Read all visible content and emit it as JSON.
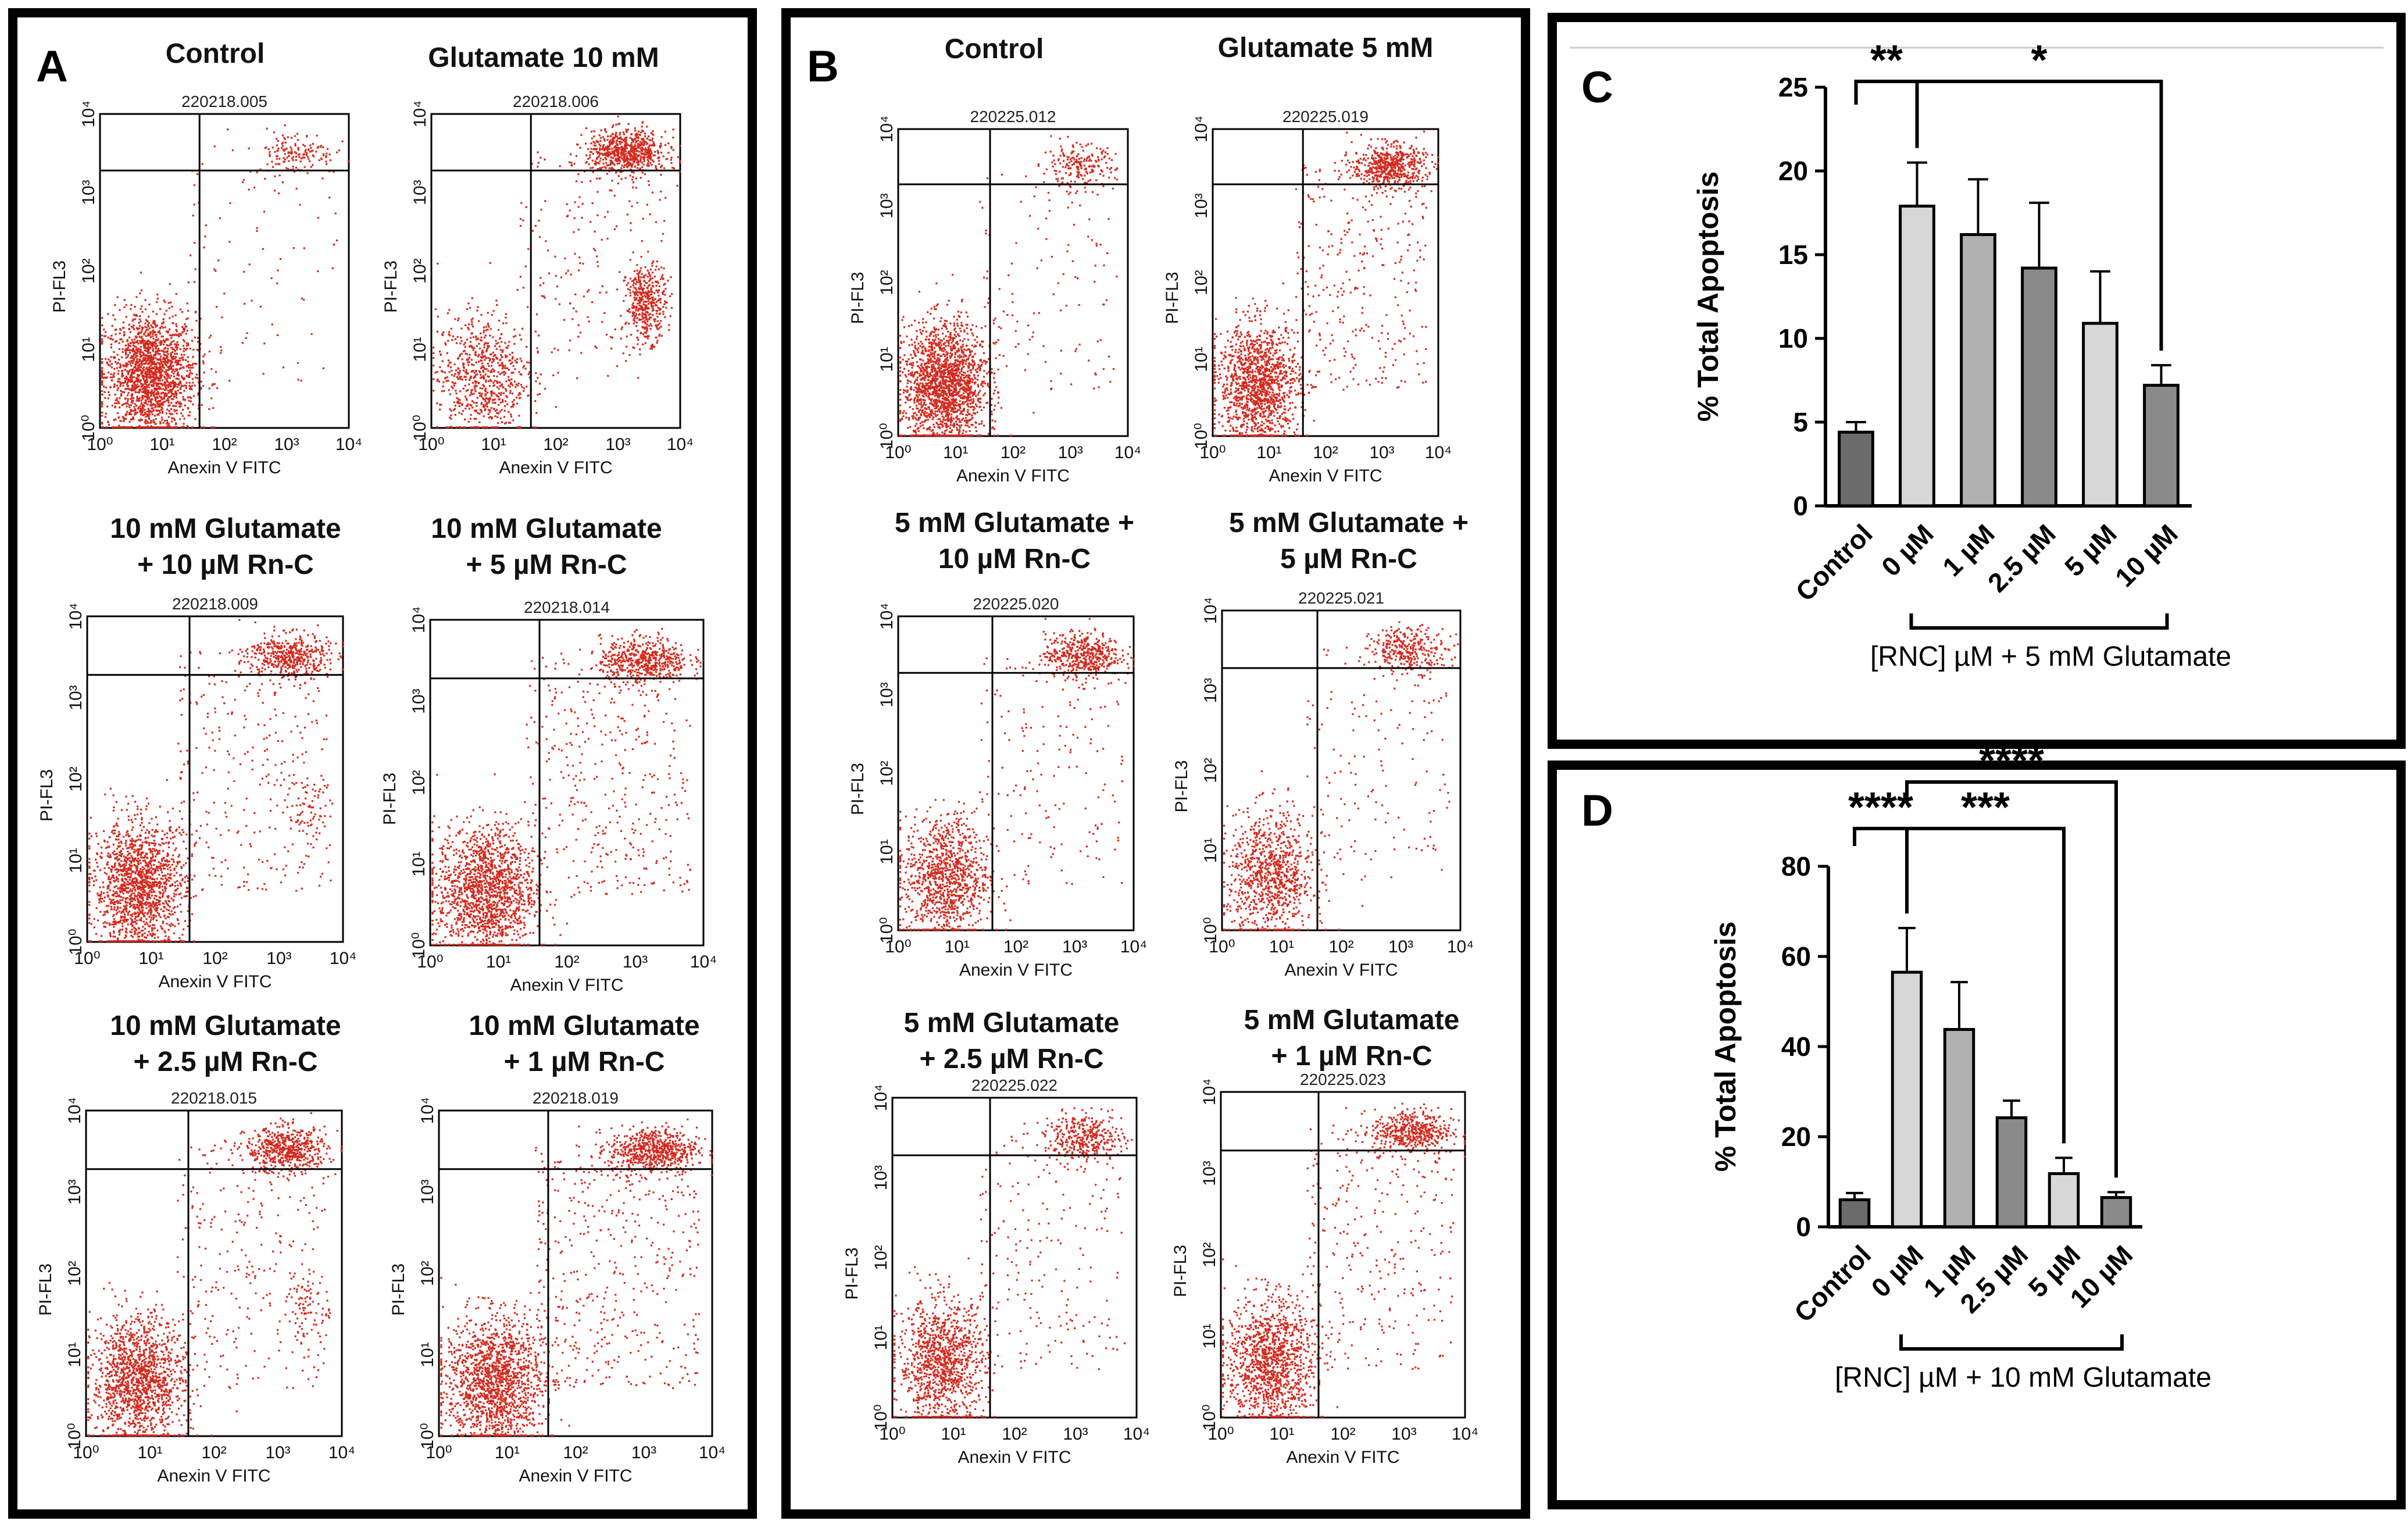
{
  "figure": {
    "panel_labels": {
      "a": "A",
      "b": "B",
      "c": "C",
      "d": "D"
    },
    "dot_color": "#d42a1e",
    "bar_colors": {
      "dark": "#6b6b6b",
      "light": "#d7d7d7",
      "mid": "#8a8a8a",
      "midlight": "#b0b0b0"
    }
  },
  "flow_axes": {
    "xlabel": "Anexin V FITC",
    "ylabel": "PI-FL3",
    "tick_labels": [
      "10⁰",
      "10¹",
      "10²",
      "10³",
      "10⁴"
    ]
  },
  "panelA": {
    "plots": [
      {
        "title": [
          "Control"
        ],
        "sample_id": "220218.005"
      },
      {
        "title": [
          "Glutamate 10 mM"
        ],
        "sample_id": "220218.006"
      },
      {
        "title": [
          "10 mM Glutamate",
          "+ 10 µM Rn-C"
        ],
        "sample_id": "220218.009"
      },
      {
        "title": [
          "10 mM Glutamate",
          "+ 5 µM Rn-C"
        ],
        "sample_id": "220218.014"
      },
      {
        "title": [
          "10 mM Glutamate",
          "+ 2.5 µM Rn-C"
        ],
        "sample_id": "220218.015"
      },
      {
        "title": [
          "10 mM Glutamate",
          "+ 1 µM Rn-C"
        ],
        "sample_id": "220218.019"
      }
    ]
  },
  "panelB": {
    "plots": [
      {
        "title": [
          "Control"
        ],
        "sample_id": "220225.012"
      },
      {
        "title": [
          "Glutamate 5 mM"
        ],
        "sample_id": "220225.019"
      },
      {
        "title": [
          "5 mM Glutamate +",
          "10 µM Rn-C"
        ],
        "sample_id": "220225.020"
      },
      {
        "title": [
          "5 mM Glutamate +",
          "5 µM Rn-C"
        ],
        "sample_id": "220225.021"
      },
      {
        "title": [
          "5 mM Glutamate",
          "+ 2.5 µM Rn-C"
        ],
        "sample_id": "220225.022"
      },
      {
        "title": [
          "5 mM Glutamate",
          "+ 1 µM Rn-C"
        ],
        "sample_id": "220225.023"
      }
    ]
  },
  "chart_data": [
    {
      "id": "C",
      "type": "bar",
      "categories": [
        "Control",
        "0 µM",
        "1 µM",
        "2.5 µM",
        "5 µM",
        "10 µM"
      ],
      "values": [
        4.4,
        17.9,
        16.2,
        14.2,
        10.9,
        7.2
      ],
      "errors": [
        0.6,
        2.6,
        3.3,
        3.9,
        3.1,
        1.2
      ],
      "ylabel": "% Total Apoptosis",
      "xlabel": "[RNC] µM + 5 mM Glutamate",
      "ylim": [
        0,
        25
      ],
      "yticks": [
        0,
        5,
        10,
        15,
        20,
        25
      ],
      "significance": [
        {
          "from": 0,
          "to": 1,
          "label": "**"
        },
        {
          "from": 1,
          "to": 5,
          "label": "*"
        }
      ]
    },
    {
      "id": "D",
      "type": "bar",
      "categories": [
        "Control",
        "0 µM",
        "1 µM",
        "2.5 µM",
        "5 µM",
        "10 µM"
      ],
      "values": [
        6.0,
        56.5,
        43.8,
        24.2,
        11.8,
        6.5
      ],
      "errors": [
        1.5,
        9.8,
        10.5,
        3.8,
        3.5,
        1.2
      ],
      "ylabel": "% Total Apoptosis",
      "xlabel": "[RNC] µM + 10 mM Glutamate",
      "ylim": [
        0,
        80
      ],
      "yticks": [
        0,
        20,
        40,
        60,
        80
      ],
      "significance": [
        {
          "from": 0,
          "to": 1,
          "label": "****"
        },
        {
          "from": 1,
          "to": 4,
          "label": "***"
        },
        {
          "from": 1,
          "to": 5,
          "label": "****"
        }
      ]
    }
  ]
}
